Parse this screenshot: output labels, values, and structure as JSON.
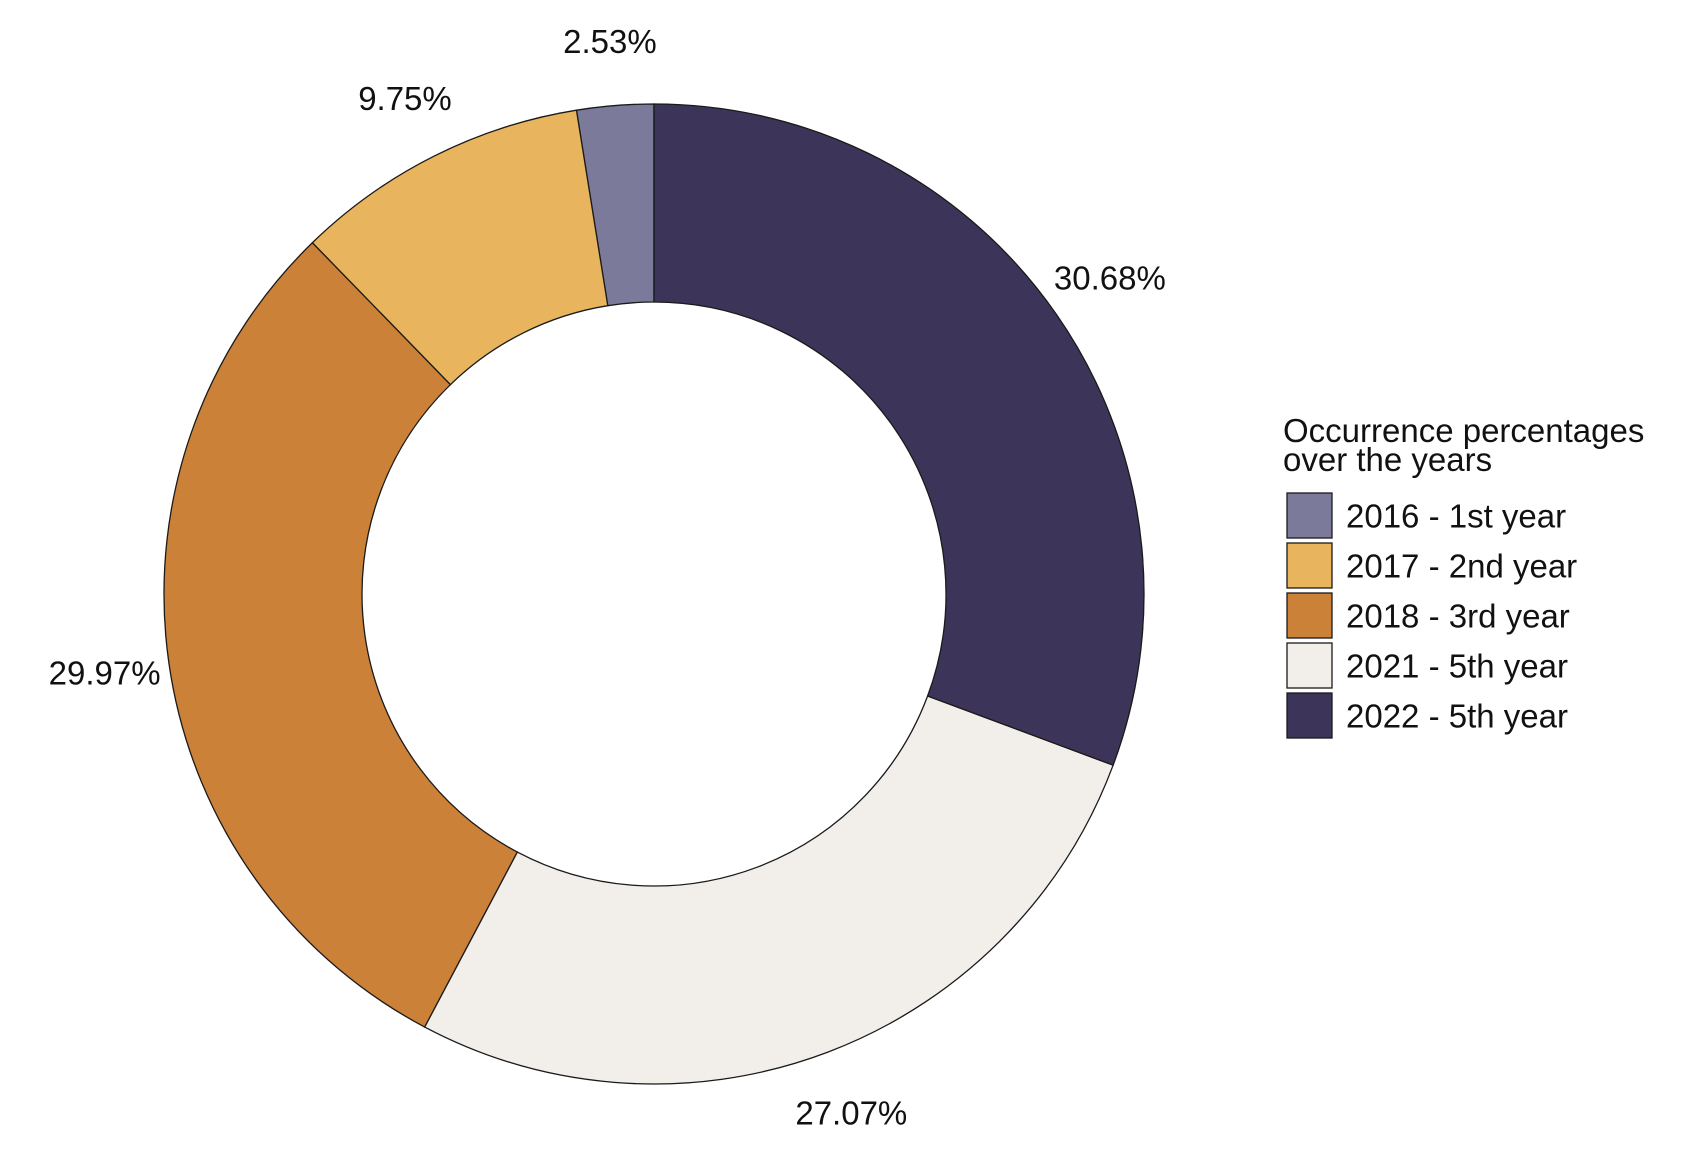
{
  "chart_data": {
    "type": "pie",
    "donut": true,
    "legend": {
      "title_lines": [
        "Occurrence percentages",
        "over the years"
      ],
      "position": "right"
    },
    "slices": [
      {
        "category": "2016 - 1st year",
        "value": 2.53,
        "label": "2.53%",
        "color": "#7b7a9b"
      },
      {
        "category": "2017 - 2nd year",
        "value": 9.75,
        "label": "9.75%",
        "color": "#e8b45d"
      },
      {
        "category": "2018 - 3rd year",
        "value": 29.97,
        "label": "29.97%",
        "color": "#cb8138"
      },
      {
        "category": "2021 - 5th year",
        "value": 27.07,
        "label": "27.07%",
        "color": "#f2eeea"
      },
      {
        "category": "2022 - 5th year",
        "value": 30.68,
        "label": "30.68%",
        "color": "#3d3559"
      }
    ]
  }
}
